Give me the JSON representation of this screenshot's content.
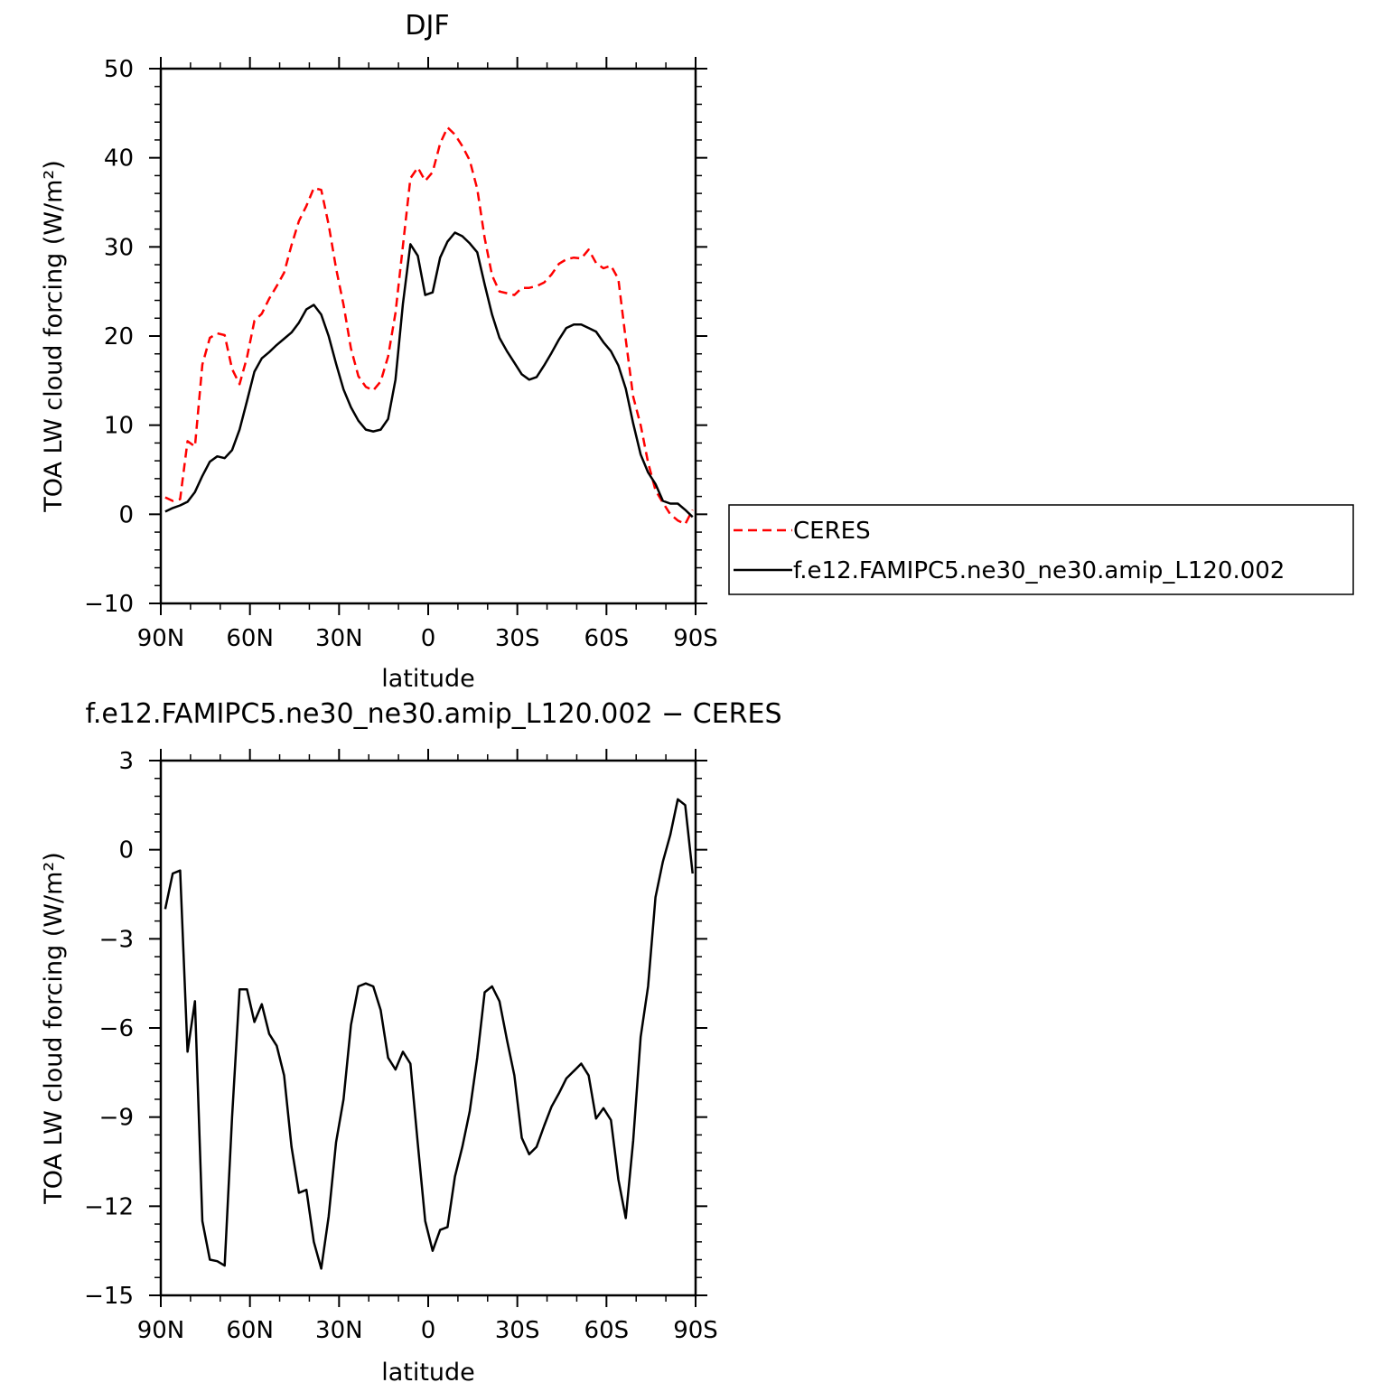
{
  "chart_data": [
    {
      "type": "line",
      "title": "DJF",
      "xlabel": "latitude",
      "ylabel": "TOA LW cloud forcing (W/m²)",
      "xlim": [
        90,
        -90
      ],
      "ylim": [
        -10,
        50
      ],
      "xticks": [
        90,
        60,
        30,
        0,
        -30,
        -60,
        -90
      ],
      "xtick_labels": [
        "90N",
        "60N",
        "30N",
        "0",
        "30S",
        "60S",
        "90S"
      ],
      "yticks": [
        -10,
        0,
        10,
        20,
        30,
        40,
        50
      ],
      "ytick_labels": [
        "−10",
        "0",
        "10",
        "20",
        "30",
        "40",
        "50"
      ],
      "legend": "right, boxed",
      "x": [
        88.5,
        86,
        83.5,
        81,
        78.5,
        76,
        73.5,
        71,
        68.5,
        66,
        63.5,
        61,
        58.5,
        56,
        53.5,
        51,
        48.5,
        46,
        43.5,
        41,
        38.5,
        36,
        33.5,
        31,
        28.5,
        26,
        23.5,
        21,
        18.5,
        16,
        13.5,
        11,
        8.5,
        6,
        3.5,
        1,
        -1.5,
        -4,
        -6.5,
        -9,
        -11.5,
        -14,
        -16.5,
        -19,
        -21.5,
        -24,
        -26.5,
        -29,
        -31.5,
        -34,
        -36.5,
        -39,
        -41.5,
        -44,
        -46.5,
        -49,
        -51.5,
        -54,
        -56.5,
        -59,
        -61.5,
        -64,
        -66.5,
        -69,
        -71.5,
        -74,
        -76.5,
        -79,
        -81.5,
        -84,
        -86.5,
        -89
      ],
      "series": [
        {
          "name": "CERES",
          "color": "#ff0000",
          "dash": "dashed",
          "values": [
            1.9,
            1.5,
            1.7,
            8.2,
            7.6,
            16.8,
            19.8,
            20.3,
            20.1,
            16.3,
            14.6,
            17.6,
            21.7,
            22.5,
            24.2,
            25.6,
            27.1,
            30.2,
            32.9,
            34.6,
            36.6,
            36.4,
            32.5,
            27.6,
            23.5,
            18.6,
            15.5,
            14.3,
            13.9,
            14.9,
            17.7,
            22.6,
            30.1,
            37.7,
            38.9,
            37.4,
            38.4,
            41.6,
            43.4,
            42.6,
            41.3,
            39.7,
            36.5,
            31.0,
            26.8,
            25.0,
            24.8,
            24.6,
            25.4,
            25.4,
            25.6,
            26.0,
            26.9,
            28.1,
            28.6,
            28.8,
            28.7,
            29.7,
            28.2,
            27.6,
            27.9,
            26.4,
            19.6,
            13.2,
            10.0,
            5.8,
            2.7,
            1.3,
            0.0,
            -0.7,
            -1.1,
            0.5
          ]
        },
        {
          "name": "f.e12.FAMIPC5.ne30_ne30.amip_L120.002",
          "color": "#000000",
          "dash": "solid",
          "values": [
            0.3,
            0.7,
            1.0,
            1.4,
            2.5,
            4.3,
            5.9,
            6.5,
            6.3,
            7.2,
            9.5,
            12.7,
            16.0,
            17.5,
            18.2,
            19.0,
            19.7,
            20.4,
            21.5,
            23.0,
            23.5,
            22.4,
            20.0,
            16.9,
            14.0,
            12.0,
            10.5,
            9.5,
            9.3,
            9.5,
            10.7,
            15.1,
            23.6,
            30.3,
            29.0,
            24.6,
            24.9,
            28.8,
            30.6,
            31.6,
            31.2,
            30.4,
            29.4,
            25.8,
            22.4,
            19.8,
            18.3,
            17.0,
            15.7,
            15.1,
            15.4,
            16.7,
            18.1,
            19.6,
            20.9,
            21.3,
            21.3,
            20.9,
            20.5,
            19.3,
            18.3,
            16.7,
            14.1,
            10.2,
            6.7,
            4.7,
            3.4,
            1.5,
            1.2,
            1.2,
            0.5,
            -0.3
          ]
        }
      ]
    },
    {
      "type": "line",
      "title": "f.e12.FAMIPC5.ne30_ne30.amip_L120.002 − CERES",
      "xlabel": "latitude",
      "ylabel": "TOA LW cloud forcing (W/m²)",
      "xlim": [
        90,
        -90
      ],
      "ylim": [
        -15,
        3
      ],
      "xticks": [
        90,
        60,
        30,
        0,
        -30,
        -60,
        -90
      ],
      "xtick_labels": [
        "90N",
        "60N",
        "30N",
        "0",
        "30S",
        "60S",
        "90S"
      ],
      "yticks": [
        -15,
        -12,
        -9,
        -6,
        -3,
        0,
        3
      ],
      "ytick_labels": [
        "−15",
        "−12",
        "−9",
        "−6",
        "−3",
        "0",
        "3"
      ],
      "x": [
        88.5,
        86,
        83.5,
        81,
        78.5,
        76,
        73.5,
        71,
        68.5,
        66,
        63.5,
        61,
        58.5,
        56,
        53.5,
        51,
        48.5,
        46,
        43.5,
        41,
        38.5,
        36,
        33.5,
        31,
        28.5,
        26,
        23.5,
        21,
        18.5,
        16,
        13.5,
        11,
        8.5,
        6,
        3.5,
        1,
        -1.5,
        -4,
        -6.5,
        -9,
        -11.5,
        -14,
        -16.5,
        -19,
        -21.5,
        -24,
        -26.5,
        -29,
        -31.5,
        -34,
        -36.5,
        -39,
        -41.5,
        -44,
        -46.5,
        -49,
        -51.5,
        -54,
        -56.5,
        -59,
        -61.5,
        -64,
        -66.5,
        -69,
        -71.5,
        -74,
        -76.5,
        -79,
        -81.5,
        -84,
        -86.5,
        -89
      ],
      "series": [
        {
          "name": "",
          "color": "#000000",
          "values": [
            -2.0,
            -0.8,
            -0.7,
            -6.8,
            -5.1,
            -12.5,
            -13.8,
            -13.85,
            -14.0,
            -9.0,
            -4.7,
            -4.7,
            -5.8,
            -5.2,
            -6.2,
            -6.6,
            -7.6,
            -10.0,
            -11.55,
            -11.45,
            -13.2,
            -14.1,
            -12.35,
            -9.85,
            -8.4,
            -5.9,
            -4.6,
            -4.5,
            -4.6,
            -5.4,
            -7.0,
            -7.4,
            -6.8,
            -7.2,
            -9.9,
            -12.5,
            -13.5,
            -12.8,
            -12.7,
            -11.0,
            -10.0,
            -8.8,
            -7.0,
            -4.8,
            -4.6,
            -5.1,
            -6.4,
            -7.6,
            -9.7,
            -10.25,
            -10.0,
            -9.3,
            -8.65,
            -8.2,
            -7.7,
            -7.45,
            -7.2,
            -7.6,
            -9.05,
            -8.7,
            -9.1,
            -11.1,
            -12.4,
            -9.8,
            -6.3,
            -4.6,
            -1.6,
            -0.4,
            0.5,
            1.7,
            1.5,
            -0.8
          ]
        }
      ]
    }
  ]
}
